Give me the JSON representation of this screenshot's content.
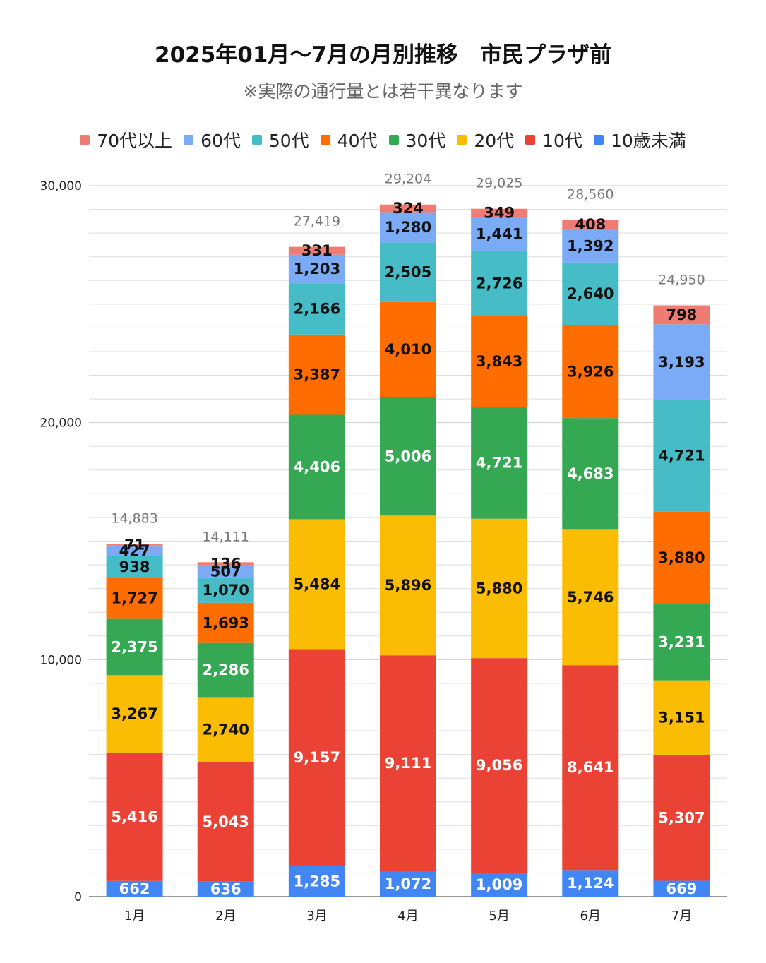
{
  "chart_data": {
    "type": "bar",
    "stacked": true,
    "title": "2025年01月～7月の月別推移　市民プラザ前",
    "subtitle": "※実際の通行量とは若干異なります",
    "categories": [
      "1月",
      "2月",
      "3月",
      "4月",
      "5月",
      "6月",
      "7月"
    ],
    "ylim": [
      0,
      30000
    ],
    "yticks": [
      0,
      10000,
      20000,
      30000
    ],
    "ytick_labels": [
      "0",
      "10,000",
      "20,000",
      "30,000"
    ],
    "legend_order": [
      "70代以上",
      "60代",
      "50代",
      "40代",
      "30代",
      "20代",
      "10代",
      "10歳未満"
    ],
    "series": [
      {
        "name": "10歳未満",
        "color": "#4285f4",
        "label_color": "#ffffff",
        "values": [
          662,
          636,
          1285,
          1072,
          1009,
          1124,
          669
        ],
        "labels": [
          "662",
          "636",
          "1,285",
          "1,072",
          "1,009",
          "1,124",
          "669"
        ]
      },
      {
        "name": "10代",
        "color": "#ea4335",
        "label_color": "#ffffff",
        "values": [
          5416,
          5043,
          9157,
          9111,
          9056,
          8641,
          5307
        ],
        "labels": [
          "5,416",
          "5,043",
          "9,157",
          "9,111",
          "9,056",
          "8,641",
          "5,307"
        ]
      },
      {
        "name": "20代",
        "color": "#fbbc04",
        "label_color": "#111111",
        "values": [
          3267,
          2740,
          5484,
          5896,
          5880,
          5746,
          3151
        ],
        "labels": [
          "3,267",
          "2,740",
          "5,484",
          "5,896",
          "5,880",
          "5,746",
          "3,151"
        ]
      },
      {
        "name": "30代",
        "color": "#34a853",
        "label_color": "#ffffff",
        "values": [
          2375,
          2286,
          4406,
          5006,
          4721,
          4683,
          3231
        ],
        "labels": [
          "2,375",
          "2,286",
          "4,406",
          "5,006",
          "4,721",
          "4,683",
          "3,231"
        ]
      },
      {
        "name": "40代",
        "color": "#ff6d01",
        "label_color": "#111111",
        "values": [
          1727,
          1693,
          3387,
          4010,
          3843,
          3926,
          3880
        ],
        "labels": [
          "1,727",
          "1,693",
          "3,387",
          "4,010",
          "3,843",
          "3,926",
          "3,880"
        ]
      },
      {
        "name": "50代",
        "color": "#46bdc6",
        "label_color": "#111111",
        "values": [
          938,
          1070,
          2166,
          2505,
          2726,
          2640,
          4721
        ],
        "labels": [
          "938",
          "1,070",
          "2,166",
          "2,505",
          "2,726",
          "2,640",
          "4,721"
        ]
      },
      {
        "name": "60代",
        "color": "#7baaf7",
        "label_color": "#111111",
        "values": [
          427,
          507,
          1203,
          1280,
          1441,
          1392,
          3193
        ],
        "labels": [
          "427",
          "507",
          "1,203",
          "1,280",
          "1,441",
          "1,392",
          "3,193"
        ]
      },
      {
        "name": "70代以上",
        "color": "#f07b72",
        "label_color": "#111111",
        "values": [
          71,
          136,
          331,
          324,
          349,
          408,
          798
        ],
        "labels": [
          "71",
          "136",
          "331",
          "324",
          "349",
          "408",
          "798"
        ]
      }
    ],
    "totals": [
      14883,
      14111,
      27419,
      29204,
      29025,
      28560,
      24950
    ],
    "total_labels": [
      "14,883",
      "14,111",
      "27,419",
      "29,204",
      "29,025",
      "28,560",
      "24,950"
    ]
  }
}
